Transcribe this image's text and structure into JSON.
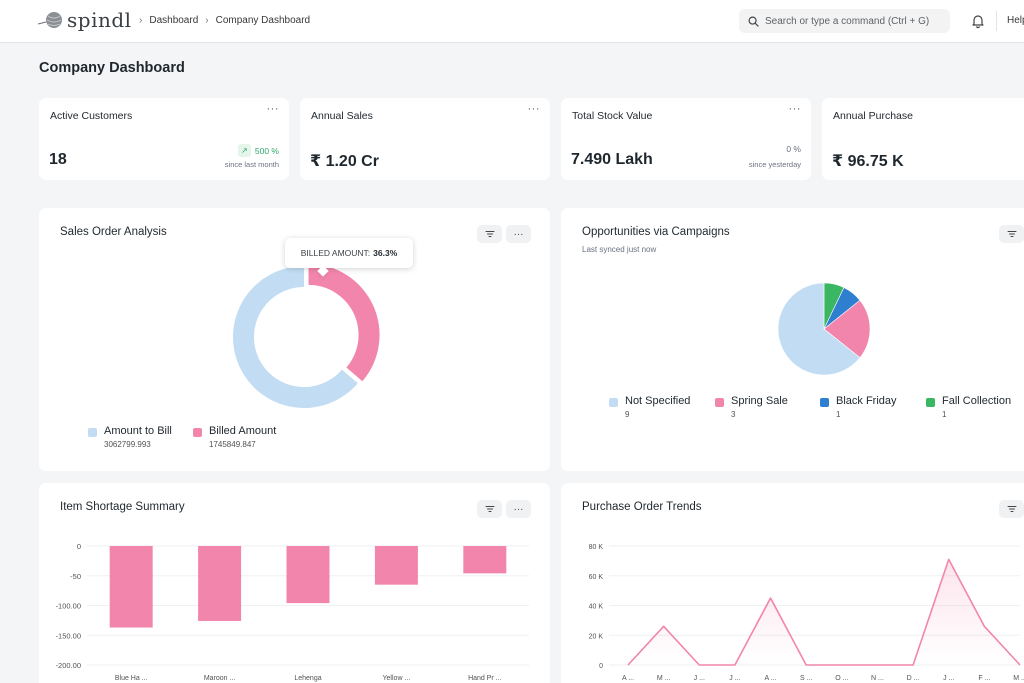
{
  "navbar": {
    "brand": "spindl",
    "breadcrumbs": [
      "Dashboard",
      "Company Dashboard"
    ],
    "search_placeholder": "Search or type a command (Ctrl + G)",
    "help_label": "Help"
  },
  "page": {
    "title": "Company Dashboard"
  },
  "number_cards": [
    {
      "label": "Active Customers",
      "value": "18",
      "change": "500 %",
      "change_dir": "up",
      "since": "since last month"
    },
    {
      "label": "Annual Sales",
      "value": "₹ 1.20 Cr"
    },
    {
      "label": "Total Stock Value",
      "value": "7.490 Lakh",
      "change": "0 %",
      "change_dir": "flat",
      "since": "since yesterday"
    },
    {
      "label": "Annual Purchase",
      "value": "₹ 96.75 K"
    }
  ],
  "menu_glyph": "···",
  "charts": {
    "sales_order": {
      "title": "Sales Order Analysis",
      "tooltip_label": "BILLED AMOUNT:",
      "tooltip_value": "36.3%"
    },
    "opportunities": {
      "title": "Opportunities via Campaigns",
      "subtitle": "Last synced just now"
    },
    "shortage": {
      "title": "Item Shortage Summary"
    },
    "purchase_trends": {
      "title": "Purchase Order Trends"
    }
  },
  "chart_data": [
    {
      "type": "pie",
      "title": "Sales Order Analysis",
      "style": "donut",
      "categories": [
        "Amount to Bill",
        "Billed Amount"
      ],
      "values": [
        3062799.993,
        1745849.847
      ],
      "value_labels": [
        "3062799.993",
        "1745849.847"
      ],
      "colors": [
        "#c2ddf3",
        "#f285ac"
      ]
    },
    {
      "type": "pie",
      "title": "Opportunities via Campaigns",
      "categories": [
        "Not Specified",
        "Spring Sale",
        "Black Friday",
        "Fall Collection"
      ],
      "values": [
        9,
        3,
        1,
        1
      ],
      "colors": [
        "#c2ddf3",
        "#f285ac",
        "#2f7fd1",
        "#3bb662"
      ]
    },
    {
      "type": "bar",
      "title": "Item Shortage Summary",
      "categories": [
        "Blue Ha ...",
        "Maroon ...",
        "Lehenga",
        "Yellow ...",
        "Hand Pr ..."
      ],
      "values": [
        -137,
        -126,
        -96,
        -65,
        -46
      ],
      "ylim": [
        -200,
        0
      ],
      "yticks": [
        "0",
        "-50",
        "-100.00",
        "-150.00",
        "-200.00"
      ],
      "color": "#f285ac"
    },
    {
      "type": "area",
      "title": "Purchase Order Trends",
      "categories": [
        "A ...",
        "M ...",
        "J ...",
        "J ...",
        "A ...",
        "S ...",
        "O ...",
        "N ...",
        "D ...",
        "J ...",
        "F ...",
        "M ..."
      ],
      "values": [
        0,
        26000,
        0,
        0,
        45000,
        0,
        0,
        0,
        0,
        71000,
        26000,
        0
      ],
      "ylim": [
        0,
        80000
      ],
      "yticks": [
        "0",
        "20 K",
        "40 K",
        "60 K",
        "80 K"
      ],
      "color": "#f285ac"
    }
  ]
}
